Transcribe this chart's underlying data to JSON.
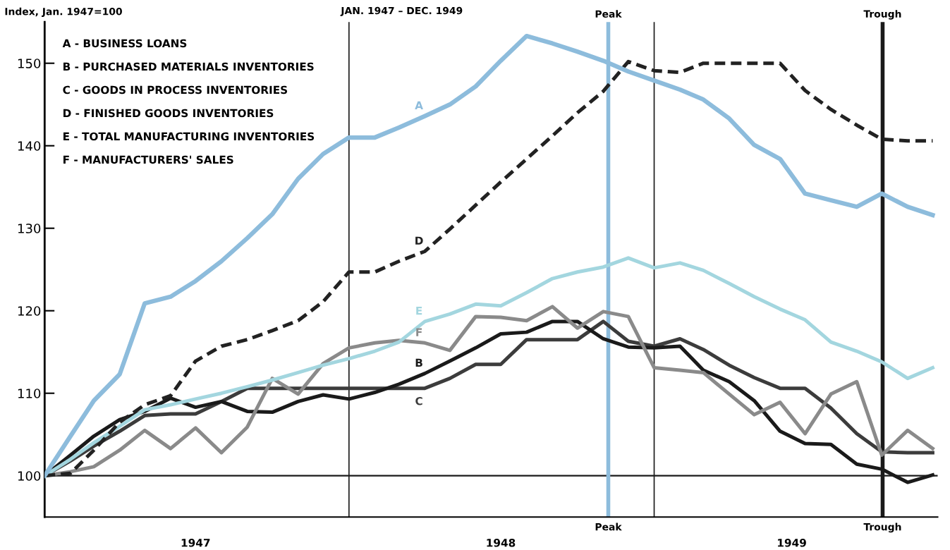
{
  "chart_data": {
    "type": "line",
    "title": "JAN. 1947 – DEC. 1949",
    "ylabel": "Index, Jan. 1947=100",
    "x": [
      "1947-01",
      "1947-02",
      "1947-03",
      "1947-04",
      "1947-05",
      "1947-06",
      "1947-07",
      "1947-08",
      "1947-09",
      "1947-10",
      "1947-11",
      "1947-12",
      "1948-01",
      "1948-02",
      "1948-03",
      "1948-04",
      "1948-05",
      "1948-06",
      "1948-07",
      "1948-08",
      "1948-09",
      "1948-10",
      "1948-11",
      "1948-12",
      "1949-01",
      "1949-02",
      "1949-03",
      "1949-04",
      "1949-05",
      "1949-06",
      "1949-07",
      "1949-08",
      "1949-09",
      "1949-10",
      "1949-11",
      "1949-12"
    ],
    "xlim": [
      "1947-01-01",
      "1949-12-07"
    ],
    "xticks": [
      {
        "value": "1947-07-01",
        "label": "1947"
      },
      {
        "value": "1948-07-01",
        "label": "1948"
      },
      {
        "value": "1949-06-15",
        "label": "1949"
      }
    ],
    "ylim": [
      95,
      155
    ],
    "yticks": [
      100,
      110,
      120,
      130,
      140,
      150
    ],
    "grid": false,
    "legend": false,
    "marker": "none",
    "series": [
      {
        "name": "A",
        "color": "#8dbcdc",
        "line_style": "solid",
        "values": [
          100,
          104.8,
          109.1,
          112.3,
          120.9,
          121.7,
          123.6,
          126.0,
          128.8,
          131.7,
          136.0,
          139.0,
          141.0,
          141.0,
          142.2,
          143.6,
          145.0,
          147.2,
          150.3,
          153.3,
          152.4,
          151.4,
          150.3,
          149.0,
          147.9,
          146.8,
          145.6,
          143.3,
          140.1,
          138.4,
          134.2,
          133.4,
          132.6,
          134.2,
          132.6,
          131.6
        ]
      },
      {
        "name": "D",
        "color": "#222222",
        "line_style": "dashed",
        "values": [
          100,
          100.3,
          103.1,
          106.5,
          108.6,
          109.7,
          113.9,
          115.7,
          116.5,
          117.6,
          118.8,
          121.1,
          124.7,
          124.7,
          126.0,
          127.2,
          129.9,
          132.8,
          135.6,
          138.4,
          141.2,
          144.0,
          146.6,
          150.2,
          149.1,
          148.9,
          150.0,
          150.0,
          150.0,
          150.0,
          146.7,
          144.4,
          142.5,
          140.8,
          140.6,
          140.6
        ]
      },
      {
        "name": "E",
        "color": "#a3d6df",
        "line_style": "solid",
        "values": [
          100,
          102.0,
          104.0,
          106.0,
          108.0,
          108.6,
          109.3,
          110.0,
          110.8,
          111.6,
          112.5,
          113.4,
          114.2,
          115.1,
          116.2,
          118.7,
          119.6,
          120.8,
          120.6,
          122.2,
          123.9,
          124.7,
          125.3,
          126.4,
          125.2,
          125.8,
          124.9,
          123.3,
          121.7,
          120.2,
          118.9,
          116.2,
          115.1,
          113.8,
          111.8,
          113.1
        ]
      },
      {
        "name": "F",
        "color": "#8a8a8a",
        "line_style": "solid",
        "values": [
          100,
          100.5,
          101.1,
          103.1,
          105.5,
          103.3,
          105.8,
          102.8,
          105.9,
          111.8,
          109.9,
          113.6,
          115.5,
          116.1,
          116.4,
          116.1,
          115.2,
          119.3,
          119.2,
          118.8,
          120.5,
          117.9,
          119.9,
          119.3,
          113.1,
          112.8,
          112.5,
          109.9,
          107.4,
          108.9,
          105.1,
          109.9,
          111.4,
          102.5,
          105.5,
          103.3
        ]
      },
      {
        "name": "B",
        "color": "#1a1a1a",
        "line_style": "solid",
        "values": [
          100,
          102.5,
          104.8,
          106.8,
          107.8,
          109.4,
          108.3,
          109.0,
          107.8,
          107.7,
          109.0,
          109.8,
          109.3,
          110.1,
          111.1,
          112.4,
          113.9,
          115.5,
          117.2,
          117.4,
          118.7,
          118.7,
          116.6,
          115.6,
          115.5,
          115.7,
          112.8,
          111.4,
          109.1,
          105.4,
          103.9,
          103.8,
          101.4,
          100.8,
          99.2,
          100.1
        ]
      },
      {
        "name": "C",
        "color": "#3c3c3c",
        "line_style": "solid",
        "values": [
          100,
          101.8,
          103.6,
          105.4,
          107.3,
          107.5,
          107.5,
          109.0,
          110.6,
          110.6,
          110.6,
          110.6,
          110.6,
          110.6,
          110.6,
          110.6,
          111.8,
          113.5,
          113.5,
          116.5,
          116.5,
          116.5,
          118.7,
          116.3,
          115.7,
          116.6,
          115.3,
          113.4,
          111.9,
          110.6,
          110.6,
          108.2,
          105.1,
          102.9,
          102.8,
          102.8
        ]
      }
    ],
    "ref_lines": [
      {
        "axis": "y",
        "value": 100,
        "color": "#1a1a1a",
        "line_style": "solid"
      },
      {
        "axis": "x",
        "value": "1948-01",
        "color": "#1a1a1a",
        "line_style": "solid"
      },
      {
        "axis": "x",
        "value": "1949-01",
        "color": "#1a1a1a",
        "line_style": "solid"
      },
      {
        "axis": "x",
        "value": "1948-11-07",
        "label": "Peak",
        "color": "#8dbcdc",
        "line_style": "solid"
      },
      {
        "axis": "x",
        "value": "1949-10-02",
        "label": "Trough",
        "color": "#1a1a1a",
        "line_style": "solid"
      }
    ],
    "annotations": [
      "A - BUSINESS LOANS",
      "B - PURCHASED MATERIALS INVENTORIES",
      "C - GOODS IN PROCESS INVENTORIES",
      "D - FINISHED GOODS INVENTORIES",
      "E - TOTAL MANUFACTURING INVENTORIES",
      "F - MANUFACTURERS' SALES"
    ]
  }
}
